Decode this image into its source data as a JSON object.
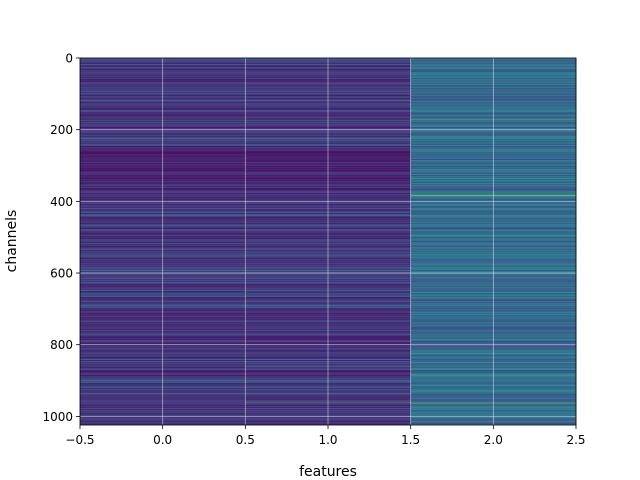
{
  "chart_data": {
    "type": "heatmap",
    "xlabel": "features",
    "ylabel": "channels",
    "x": [
      0,
      1,
      2
    ],
    "xlim": [
      -0.5,
      2.5
    ],
    "ylim": [
      1024,
      0
    ],
    "y_range": [
      0,
      1023
    ],
    "row_count": 1024,
    "x_ticks": [
      -0.5,
      0.0,
      0.5,
      1.0,
      1.5,
      2.0,
      2.5
    ],
    "x_tick_labels": [
      "−0.5",
      "0.0",
      "0.5",
      "1.0",
      "1.5",
      "2.0",
      "2.5"
    ],
    "y_ticks": [
      0,
      200,
      400,
      600,
      800,
      1000
    ],
    "y_tick_labels": [
      "0",
      "200",
      "400",
      "600",
      "800",
      "1000"
    ],
    "grid": true,
    "colormap": "viridis",
    "colormap_stops": [
      "#440154",
      "#482878",
      "#3e4a89",
      "#31688e",
      "#26828e",
      "#1f9e89",
      "#35b779",
      "#6ece58",
      "#b5de2b",
      "#fde725"
    ],
    "column_value_ranges": [
      {
        "feature": 0,
        "typical": [
          0.05,
          0.3
        ],
        "dark_band": [
          250,
          350
        ]
      },
      {
        "feature": 1,
        "typical": [
          0.05,
          0.3
        ],
        "dark_band": [
          250,
          350
        ]
      },
      {
        "feature": 2,
        "typical": [
          0.2,
          0.55
        ]
      }
    ],
    "highlight_rows": [
      {
        "feature": 2,
        "channel": 383,
        "value": 0.95
      },
      {
        "feature": 2,
        "channel": 172,
        "value": 0.75
      },
      {
        "feature": 2,
        "channel": 965,
        "value": 0.85
      },
      {
        "feature": 2,
        "channel": 886,
        "value": 0.7
      },
      {
        "feature": 1,
        "channel": 962,
        "value": 0.7
      },
      {
        "feature": 1,
        "channel": 862,
        "value": 0.6
      }
    ]
  }
}
